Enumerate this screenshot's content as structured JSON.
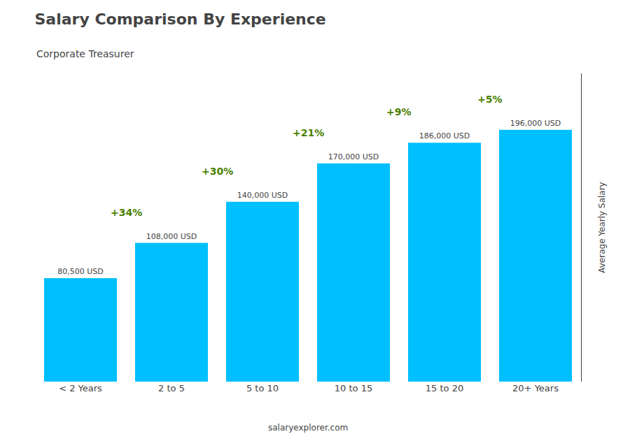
{
  "chart_data": {
    "type": "bar",
    "title": "Salary Comparison By Experience",
    "subtitle": "Corporate Treasurer",
    "categories": [
      "< 2 Years",
      "2 to 5",
      "5 to 10",
      "10 to 15",
      "15 to 20",
      "20+ Years"
    ],
    "values": [
      80500,
      108000,
      140000,
      170000,
      186000,
      196000
    ],
    "value_labels": [
      "80,500 USD",
      "108,000 USD",
      "140,000 USD",
      "170,000 USD",
      "186,000 USD",
      "196,000 USD"
    ],
    "data_labels": true,
    "color": "#00BFFF",
    "ylabel": "Average Yearly Salary",
    "annotations": [
      "+34%",
      "+30%",
      "+21%",
      "+9%",
      "+5%"
    ],
    "footer": "salaryexplorer.com",
    "ylim": [
      0,
      240000
    ],
    "grid": false,
    "tick_labels": "x"
  }
}
